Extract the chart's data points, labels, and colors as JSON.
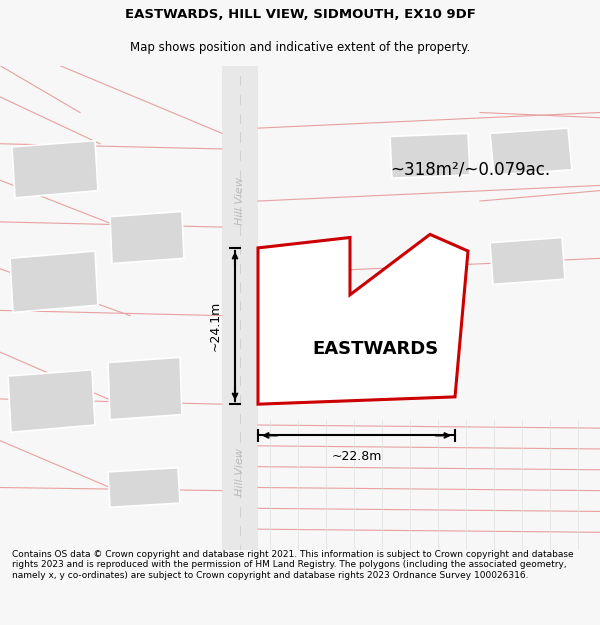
{
  "title": "EASTWARDS, HILL VIEW, SIDMOUTH, EX10 9DF",
  "subtitle": "Map shows position and indicative extent of the property.",
  "property_label": "EASTWARDS",
  "area_label": "~318m²/~0.079ac.",
  "dim_v": "~24.1m",
  "dim_h": "~22.8m",
  "footer": "Contains OS data © Crown copyright and database right 2021. This information is subject to Crown copyright and database rights 2023 and is reproduced with the permission of HM Land Registry. The polygons (including the associated geometry, namely x, y co-ordinates) are subject to Crown copyright and database rights 2023 Ordnance Survey 100026316.",
  "bg_color": "#f7f7f7",
  "map_bg": "#ffffff",
  "road_color": "#e8e8e8",
  "road_line_color": "#e8a0a0",
  "property_outline_color": "#cc0000",
  "building_color": "#d8d8d8",
  "title_fontsize": 9.5,
  "subtitle_fontsize": 8.5,
  "label_fontsize": 13,
  "area_fontsize": 12,
  "dim_fontsize": 9,
  "footer_fontsize": 6.5
}
